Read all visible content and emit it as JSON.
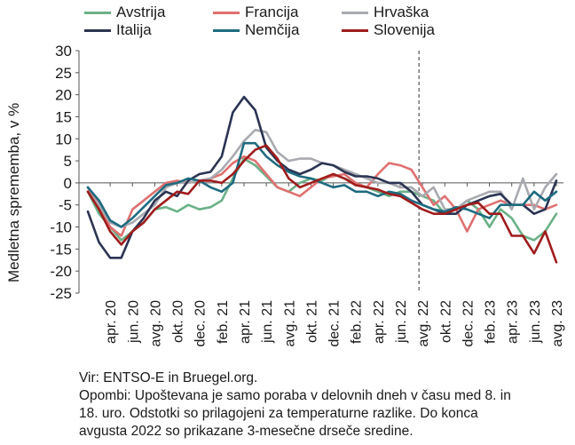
{
  "chart_data": {
    "type": "line",
    "xlabel": "",
    "ylabel": "Medletna sprememba, v %",
    "ylim": [
      -25,
      30
    ],
    "yticks": [
      -25,
      -20,
      -15,
      -10,
      -5,
      0,
      5,
      10,
      15,
      20,
      25,
      30
    ],
    "x": [
      "2020-02",
      "2020-03",
      "2020-04",
      "2020-05",
      "2020-06",
      "2020-07",
      "2020-08",
      "2020-09",
      "2020-10",
      "2020-11",
      "2020-12",
      "2021-01",
      "2021-02",
      "2021-03",
      "2021-04",
      "2021-05",
      "2021-06",
      "2021-07",
      "2021-08",
      "2021-09",
      "2021-10",
      "2021-11",
      "2021-12",
      "2022-01",
      "2022-02",
      "2022-03",
      "2022-04",
      "2022-05",
      "2022-06",
      "2022-07",
      "2022-08",
      "2022-09",
      "2022-10",
      "2022-11",
      "2022-12",
      "2023-01",
      "2023-02",
      "2023-03",
      "2023-04",
      "2023-05",
      "2023-06",
      "2023-07",
      "2023-08"
    ],
    "tick_labels": [
      "apr. 20",
      "jun. 20",
      "avg. 20",
      "okt. 20",
      "dec. 20",
      "feb. 21",
      "apr. 21",
      "jun. 21",
      "avg. 21",
      "okt. 21",
      "dec. 21",
      "feb. 22",
      "apr. 22",
      "jun. 22",
      "avg. 22",
      "okt. 22",
      "dec. 22",
      "feb. 23",
      "apr. 23",
      "jun. 23",
      "avg. 23"
    ],
    "tick_indices": [
      2,
      4,
      6,
      8,
      10,
      12,
      14,
      16,
      18,
      20,
      22,
      24,
      26,
      28,
      30,
      32,
      34,
      36,
      38,
      40,
      42
    ],
    "vline_index": 30,
    "legend_position": "top",
    "series": [
      {
        "name": "Avstrija",
        "color": "#6ab187",
        "values": [
          -2,
          -7,
          -10,
          -13,
          -11,
          -9,
          -6,
          -5.5,
          -6.5,
          -5,
          -6,
          -5.5,
          -4,
          1,
          5.5,
          4,
          1.5,
          -1,
          -2,
          0,
          1,
          0.5,
          2,
          1,
          0,
          -1,
          -2,
          -3,
          -2,
          -2,
          -3,
          -4,
          -7,
          -6,
          -4,
          -6,
          -10,
          -6,
          -8,
          -12,
          -13,
          -11,
          -7
        ]
      },
      {
        "name": "Francija",
        "color": "#e07070",
        "values": [
          -1,
          -5,
          -10,
          -12,
          -6,
          -4,
          -2,
          0,
          0.5,
          0,
          0.5,
          1,
          2,
          4.5,
          6,
          5,
          2,
          -1,
          -2,
          -3,
          -1,
          1,
          1.5,
          2,
          0,
          -1,
          2,
          4.5,
          4,
          3,
          -1,
          -5,
          -3,
          -6,
          -11,
          -6,
          -5,
          -4,
          -5,
          -5,
          -5,
          -6,
          -5
        ]
      },
      {
        "name": "Hrvaška",
        "color": "#a8aab0",
        "values": [
          -2,
          -5,
          -9,
          -10,
          -9,
          -7,
          -5,
          -1,
          0,
          0,
          0.5,
          1,
          3,
          6,
          9.5,
          12,
          11.5,
          7,
          5,
          5.5,
          5.5,
          4.5,
          4,
          3,
          2,
          1,
          0,
          0,
          -1,
          -1,
          -3,
          -1,
          -6,
          -6,
          -4,
          -3,
          -2,
          -2,
          -6,
          1,
          -6,
          -1,
          2
        ]
      },
      {
        "name": "Italija",
        "color": "#2b3452",
        "values": [
          -6.5,
          -13.5,
          -17,
          -17,
          -11,
          -8,
          -4,
          -2,
          -3,
          0.5,
          2,
          2.5,
          6,
          16,
          19.5,
          16.5,
          8,
          5,
          3,
          2,
          3,
          4.5,
          4,
          2.5,
          1.5,
          1.5,
          1,
          0,
          0,
          -2,
          -5,
          -6,
          -7,
          -7,
          -5,
          -4,
          -3,
          -2.5,
          -5,
          -5,
          -7,
          -6,
          0.5
        ]
      },
      {
        "name": "Nemčija",
        "color": "#1e6b80",
        "values": [
          -1,
          -4,
          -8.5,
          -10,
          -8,
          -5.5,
          -3,
          -0.5,
          0,
          1,
          0.5,
          -1,
          -2,
          0,
          9,
          9,
          6,
          4,
          2.5,
          1.5,
          1,
          0,
          -1,
          -0.5,
          -2,
          -2,
          -3,
          -2,
          -2.5,
          -4,
          -5,
          -6,
          -6.5,
          -5.5,
          -6,
          -7,
          -8,
          -5,
          -5,
          -5,
          -2,
          -4,
          -2
        ]
      },
      {
        "name": "Slovenija",
        "color": "#a01c1c",
        "values": [
          -2,
          -6,
          -11,
          -14,
          -11,
          -9,
          -6,
          -4,
          -2,
          -2.5,
          0.5,
          0.5,
          0,
          2,
          5,
          7.5,
          8.5,
          5.5,
          1,
          -1,
          0,
          1,
          2,
          1,
          -0.5,
          -1,
          -1.5,
          -2.5,
          -3,
          -4.5,
          -6,
          -7,
          -7,
          -6,
          -5,
          -4.5,
          -7,
          -7,
          -12,
          -12,
          -16,
          -11,
          -18
        ]
      }
    ]
  },
  "notes": {
    "source": "Vir: ENTSO-E in Bruegel.org.",
    "note_line1": "Opombi: Upoštevana je samo poraba v delovnih dneh v času med 8. in",
    "note_line2": "18. uro. Odstotki so prilagojeni za temperaturne razlike. Do konca",
    "note_line3": "avgusta 2022 so prikazane 3-mesečne drseče sredine."
  }
}
